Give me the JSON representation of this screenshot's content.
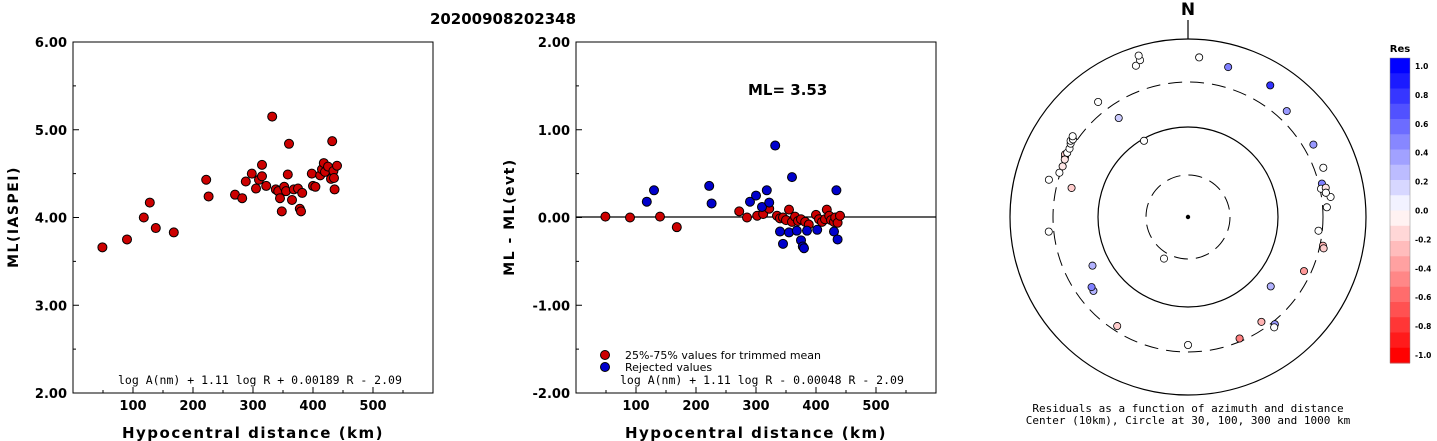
{
  "title": "20200908202348",
  "colors": {
    "trimmed": "#cc0000",
    "rejected": "#0000cc",
    "axis": "#000000"
  },
  "chart_data": [
    {
      "type": "scatter",
      "xlabel": "Hypocentral distance (km)",
      "ylabel": "ML(IASPEI)",
      "xlim": [
        0,
        600
      ],
      "ylim": [
        2.0,
        6.0
      ],
      "xticks": [
        "100",
        "200",
        "300",
        "400",
        "500"
      ],
      "yticks": [
        "2.00",
        "3.00",
        "4.00",
        "5.00",
        "6.00"
      ],
      "annotation": "log A(nm) + 1.11 log R + 0.00189 R - 2.09",
      "points": [
        [
          49,
          3.66
        ],
        [
          90,
          3.75
        ],
        [
          118,
          4.0
        ],
        [
          128,
          4.17
        ],
        [
          138,
          3.88
        ],
        [
          168,
          3.83
        ],
        [
          222,
          4.43
        ],
        [
          226,
          4.24
        ],
        [
          270,
          4.26
        ],
        [
          282,
          4.22
        ],
        [
          288,
          4.41
        ],
        [
          298,
          4.5
        ],
        [
          305,
          4.33
        ],
        [
          310,
          4.43
        ],
        [
          315,
          4.47
        ],
        [
          315,
          4.6
        ],
        [
          322,
          4.36
        ],
        [
          332,
          5.15
        ],
        [
          338,
          4.32
        ],
        [
          342,
          4.3
        ],
        [
          345,
          4.22
        ],
        [
          348,
          4.07
        ],
        [
          352,
          4.35
        ],
        [
          355,
          4.3
        ],
        [
          358,
          4.49
        ],
        [
          360,
          4.84
        ],
        [
          365,
          4.2
        ],
        [
          368,
          4.32
        ],
        [
          375,
          4.33
        ],
        [
          378,
          4.1
        ],
        [
          380,
          4.07
        ],
        [
          382,
          4.28
        ],
        [
          398,
          4.5
        ],
        [
          400,
          4.36
        ],
        [
          404,
          4.35
        ],
        [
          412,
          4.48
        ],
        [
          415,
          4.55
        ],
        [
          418,
          4.62
        ],
        [
          420,
          4.52
        ],
        [
          425,
          4.58
        ],
        [
          430,
          4.44
        ],
        [
          432,
          4.87
        ],
        [
          434,
          4.53
        ],
        [
          435,
          4.45
        ],
        [
          436,
          4.32
        ],
        [
          440,
          4.59
        ]
      ]
    },
    {
      "type": "scatter",
      "xlabel": "Hypocentral distance (km)",
      "ylabel": "ML - ML(evt)",
      "xlim": [
        0,
        600
      ],
      "ylim": [
        -2.0,
        2.0
      ],
      "xticks": [
        "100",
        "200",
        "300",
        "400",
        "500"
      ],
      "yticks": [
        "-2.00",
        "-1.00",
        "0.00",
        "1.00",
        "2.00"
      ],
      "ml_label": "ML= 3.53",
      "annotation": "log A(nm) + 1.11 log R - 0.00048 R - 2.09",
      "legend": [
        "25%-75% values for trimmed mean",
        "Rejected values"
      ],
      "series": [
        {
          "name": "25%-75% values for trimmed mean",
          "points": [
            [
              49,
              0.01
            ],
            [
              90,
              0.0
            ],
            [
              140,
              0.01
            ],
            [
              168,
              -0.11
            ],
            [
              272,
              0.07
            ],
            [
              285,
              0.0
            ],
            [
              302,
              0.02
            ],
            [
              312,
              0.04
            ],
            [
              322,
              0.1
            ],
            [
              335,
              0.02
            ],
            [
              340,
              -0.01
            ],
            [
              345,
              0.0
            ],
            [
              350,
              -0.03
            ],
            [
              355,
              0.09
            ],
            [
              360,
              -0.05
            ],
            [
              365,
              0.01
            ],
            [
              370,
              -0.04
            ],
            [
              375,
              -0.02
            ],
            [
              382,
              -0.05
            ],
            [
              388,
              -0.08
            ],
            [
              400,
              0.03
            ],
            [
              405,
              -0.02
            ],
            [
              410,
              -0.05
            ],
            [
              415,
              -0.02
            ],
            [
              418,
              0.09
            ],
            [
              422,
              0.02
            ],
            [
              425,
              -0.03
            ],
            [
              430,
              -0.05
            ],
            [
              432,
              0.0
            ],
            [
              436,
              -0.06
            ],
            [
              440,
              0.02
            ]
          ]
        },
        {
          "name": "Rejected values",
          "points": [
            [
              118,
              0.18
            ],
            [
              130,
              0.31
            ],
            [
              222,
              0.36
            ],
            [
              226,
              0.16
            ],
            [
              290,
              0.18
            ],
            [
              300,
              0.25
            ],
            [
              310,
              0.12
            ],
            [
              318,
              0.31
            ],
            [
              322,
              0.17
            ],
            [
              332,
              0.82
            ],
            [
              340,
              -0.16
            ],
            [
              345,
              -0.3
            ],
            [
              355,
              -0.17
            ],
            [
              360,
              0.46
            ],
            [
              368,
              -0.15
            ],
            [
              375,
              -0.26
            ],
            [
              378,
              -0.33
            ],
            [
              380,
              -0.35
            ],
            [
              385,
              -0.15
            ],
            [
              402,
              -0.14
            ],
            [
              430,
              -0.16
            ],
            [
              434,
              0.31
            ],
            [
              436,
              -0.25
            ]
          ]
        }
      ]
    },
    {
      "type": "scatter",
      "subtype": "polar-residuals",
      "north_label": "N",
      "caption": [
        "Residuals as a function of azimuth and distance",
        "Center (10km), Circle at 30, 100, 300 and 1000 km"
      ],
      "colorbar": {
        "title": "Res",
        "ticks": [
          "1.0",
          "0.8",
          "0.6",
          "0.4",
          "0.2",
          "0.0",
          "-0.2",
          "-0.4",
          "-0.6",
          "-0.8",
          "-1.0"
        ],
        "range": [
          -1.0,
          1.0
        ]
      },
      "stations": [
        [
          341,
          400,
          0.0
        ],
        [
          343,
          410,
          0.0
        ],
        [
          343,
          422,
          0.0
        ],
        [
          4,
          400,
          0.0
        ],
        [
          15,
          388,
          0.5
        ],
        [
          32,
          388,
          0.8
        ],
        [
          43,
          362,
          0.4
        ],
        [
          60,
          362,
          0.4
        ],
        [
          70,
          360,
          0.0
        ],
        [
          76,
          345,
          0.5
        ],
        [
          78,
          340,
          0.0
        ],
        [
          78,
          352,
          -0.1
        ],
        [
          80,
          350,
          0.0
        ],
        [
          82,
          360,
          0.0
        ],
        [
          80,
          350,
          0.0
        ],
        [
          86,
          348,
          0.0
        ],
        [
          96,
          328,
          0.0
        ],
        [
          102,
          345,
          -0.3
        ],
        [
          103,
          348,
          -0.2
        ],
        [
          115,
          320,
          -0.4
        ],
        [
          130,
          270,
          0.3
        ],
        [
          141,
          345,
          0.4
        ],
        [
          142,
          350,
          0.0
        ],
        [
          145,
          320,
          -0.3
        ],
        [
          157,
          330,
          -0.5
        ],
        [
          180,
          320,
          0.0
        ],
        [
          210,
          120,
          0.0
        ],
        [
          213,
          325,
          -0.2
        ],
        [
          232,
          300,
          0.3
        ],
        [
          234,
          298,
          0.5
        ],
        [
          243,
          268,
          0.3
        ],
        [
          264,
          350,
          0.0
        ],
        [
          284,
          300,
          -0.2
        ],
        [
          289,
          340,
          0.0
        ],
        [
          292,
          338,
          -0.1
        ],
        [
          296,
          342,
          -0.2
        ],
        [
          297,
          345,
          -0.2
        ],
        [
          298,
          342,
          0.0
        ],
        [
          300,
          342,
          0.0
        ],
        [
          302,
          346,
          0.0
        ],
        [
          303,
          350,
          0.0
        ],
        [
          304,
          347,
          0.0
        ],
        [
          305,
          352,
          0.0
        ],
        [
          295,
          340,
          -0.1
        ],
        [
          325,
          302,
          0.2
        ],
        [
          330,
          220,
          0.0
        ],
        [
          322,
          365,
          0.0
        ],
        [
          285,
          360,
          0.0
        ]
      ]
    }
  ]
}
